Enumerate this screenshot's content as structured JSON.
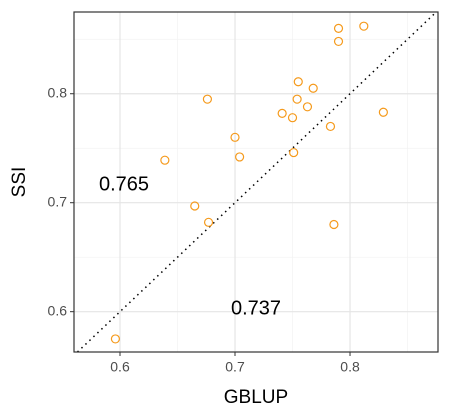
{
  "chart_data": {
    "type": "scatter",
    "x_label": "GBLUP",
    "y_label": "SSI",
    "x": [
      0.596,
      0.639,
      0.665,
      0.677,
      0.676,
      0.7,
      0.704,
      0.741,
      0.75,
      0.751,
      0.755,
      0.754,
      0.763,
      0.768,
      0.783,
      0.786,
      0.79,
      0.79,
      0.812,
      0.829
    ],
    "series": [
      {
        "color": "#f59a1c",
        "values": [
          0.575,
          0.739,
          0.697,
          0.682,
          0.795,
          0.76,
          0.742,
          0.782,
          0.778,
          0.746,
          0.811,
          0.795,
          0.788,
          0.805,
          0.77,
          0.68,
          0.86,
          0.848,
          0.862,
          0.783
        ]
      }
    ],
    "xlim": [
      0.56,
      0.8765
    ],
    "ylim": [
      0.563,
      0.875
    ],
    "xticks": [
      0.6,
      0.7,
      0.8
    ],
    "yticks": [
      0.6,
      0.7,
      0.8
    ],
    "xminor": [
      0.65,
      0.75,
      0.85
    ],
    "yminor": [
      0.65,
      0.75,
      0.85
    ],
    "grid": true,
    "annotations": [
      "0.765",
      "0.737"
    ]
  }
}
